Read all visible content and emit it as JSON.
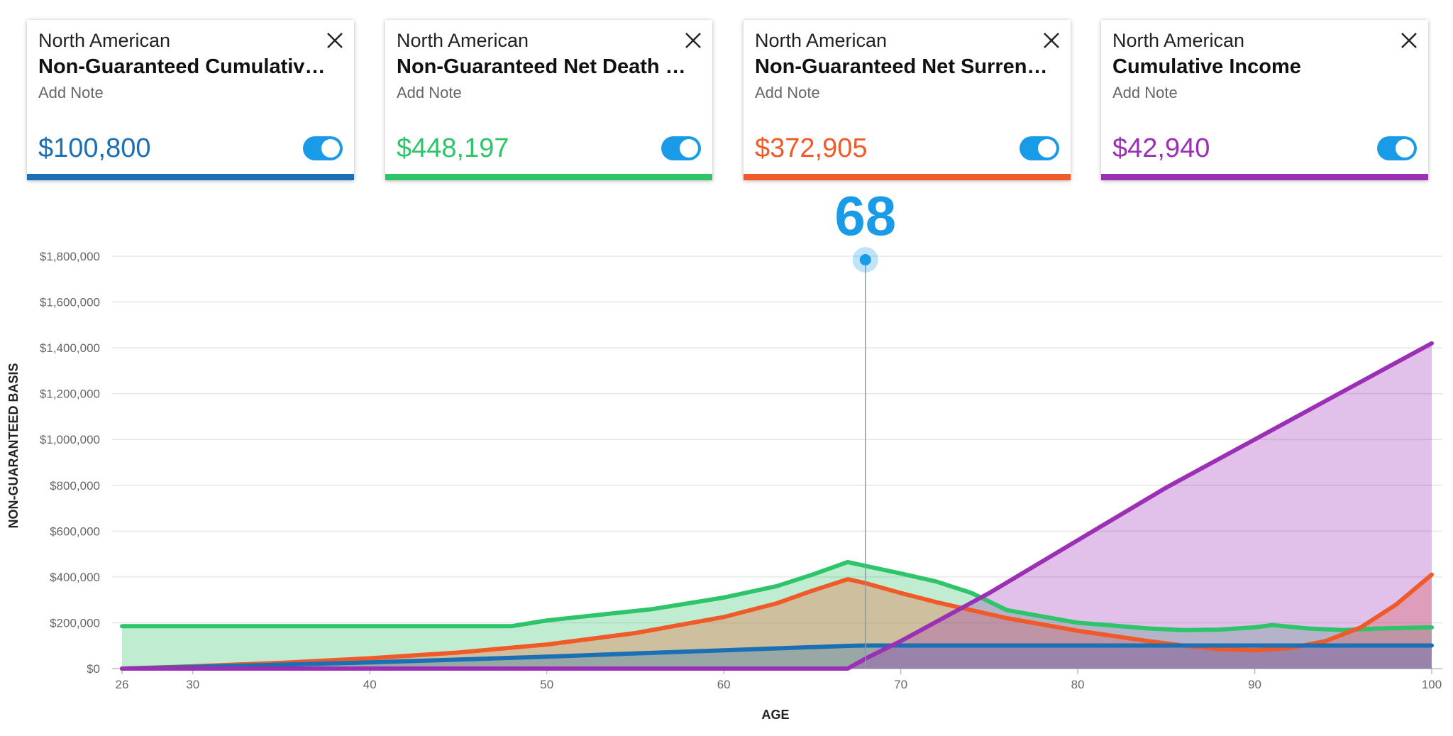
{
  "cards": [
    {
      "company": "North American",
      "title": "Non-Guaranteed Cumulative P...",
      "note": "Add Note",
      "value": "$100,800",
      "color": "#1a6fb5",
      "toggle_on": true
    },
    {
      "company": "North American",
      "title": "Non-Guaranteed Net Death Be...",
      "note": "Add Note",
      "value": "$448,197",
      "color": "#2ec46a",
      "toggle_on": true
    },
    {
      "company": "North American",
      "title": "Non-Guaranteed Net Surrende...",
      "note": "Add Note",
      "value": "$372,905",
      "color": "#f05a28",
      "toggle_on": true
    },
    {
      "company": "North American",
      "title": "Cumulative Income",
      "note": "Add Note",
      "value": "$42,940",
      "color": "#9b30b5",
      "toggle_on": true
    }
  ],
  "toggle_color": "#1a9be8",
  "marker": {
    "age": 68,
    "label": "68",
    "color": "#1a9be8"
  },
  "chart_data": {
    "type": "area",
    "xlabel": "AGE",
    "ylabel": "NON-GUARANTEED BASIS",
    "xlim": [
      26,
      100
    ],
    "ylim": [
      0,
      1800000
    ],
    "xticks": [
      "26",
      "30",
      "40",
      "50",
      "60",
      "70",
      "80",
      "90",
      "100"
    ],
    "yticks": [
      "$0",
      "$200,000",
      "$400,000",
      "$600,000",
      "$800,000",
      "$1,000,000",
      "$1,200,000",
      "$1,400,000",
      "$1,600,000",
      "$1,800,000"
    ],
    "grid": true,
    "series": [
      {
        "color": "#2ec46a",
        "x": [
          26,
          30,
          40,
          48,
          50,
          56,
          60,
          63,
          65,
          67,
          68,
          70,
          72,
          74,
          76,
          80,
          84,
          86,
          88,
          90,
          91,
          93,
          95,
          97,
          100
        ],
        "y": [
          185000,
          185000,
          185000,
          185000,
          210000,
          260000,
          310000,
          360000,
          410000,
          465000,
          448197,
          415000,
          380000,
          330000,
          255000,
          200000,
          175000,
          168000,
          170000,
          180000,
          190000,
          175000,
          168000,
          175000,
          180000
        ]
      },
      {
        "color": "#f05a28",
        "x": [
          26,
          30,
          35,
          40,
          45,
          50,
          55,
          60,
          63,
          65,
          67,
          68,
          70,
          72,
          74,
          76,
          80,
          84,
          86,
          88,
          90,
          92,
          94,
          96,
          98,
          100
        ],
        "y": [
          0,
          10000,
          25000,
          45000,
          70000,
          105000,
          155000,
          225000,
          285000,
          340000,
          390000,
          372905,
          330000,
          290000,
          255000,
          220000,
          165000,
          120000,
          100000,
          85000,
          80000,
          90000,
          120000,
          180000,
          280000,
          410000
        ]
      },
      {
        "color": "#1a6fb5",
        "x": [
          26,
          30,
          40,
          50,
          60,
          67,
          68,
          70,
          80,
          90,
          100
        ],
        "y": [
          0,
          7000,
          27000,
          52000,
          80000,
          99000,
          100800,
          100800,
          100800,
          100800,
          100800
        ]
      },
      {
        "color": "#9b30b5",
        "x": [
          26,
          67,
          68,
          70,
          75,
          80,
          85,
          90,
          95,
          100
        ],
        "y": [
          0,
          0,
          42940,
          120000,
          330000,
          560000,
          790000,
          1000000,
          1210000,
          1420000
        ]
      }
    ]
  }
}
